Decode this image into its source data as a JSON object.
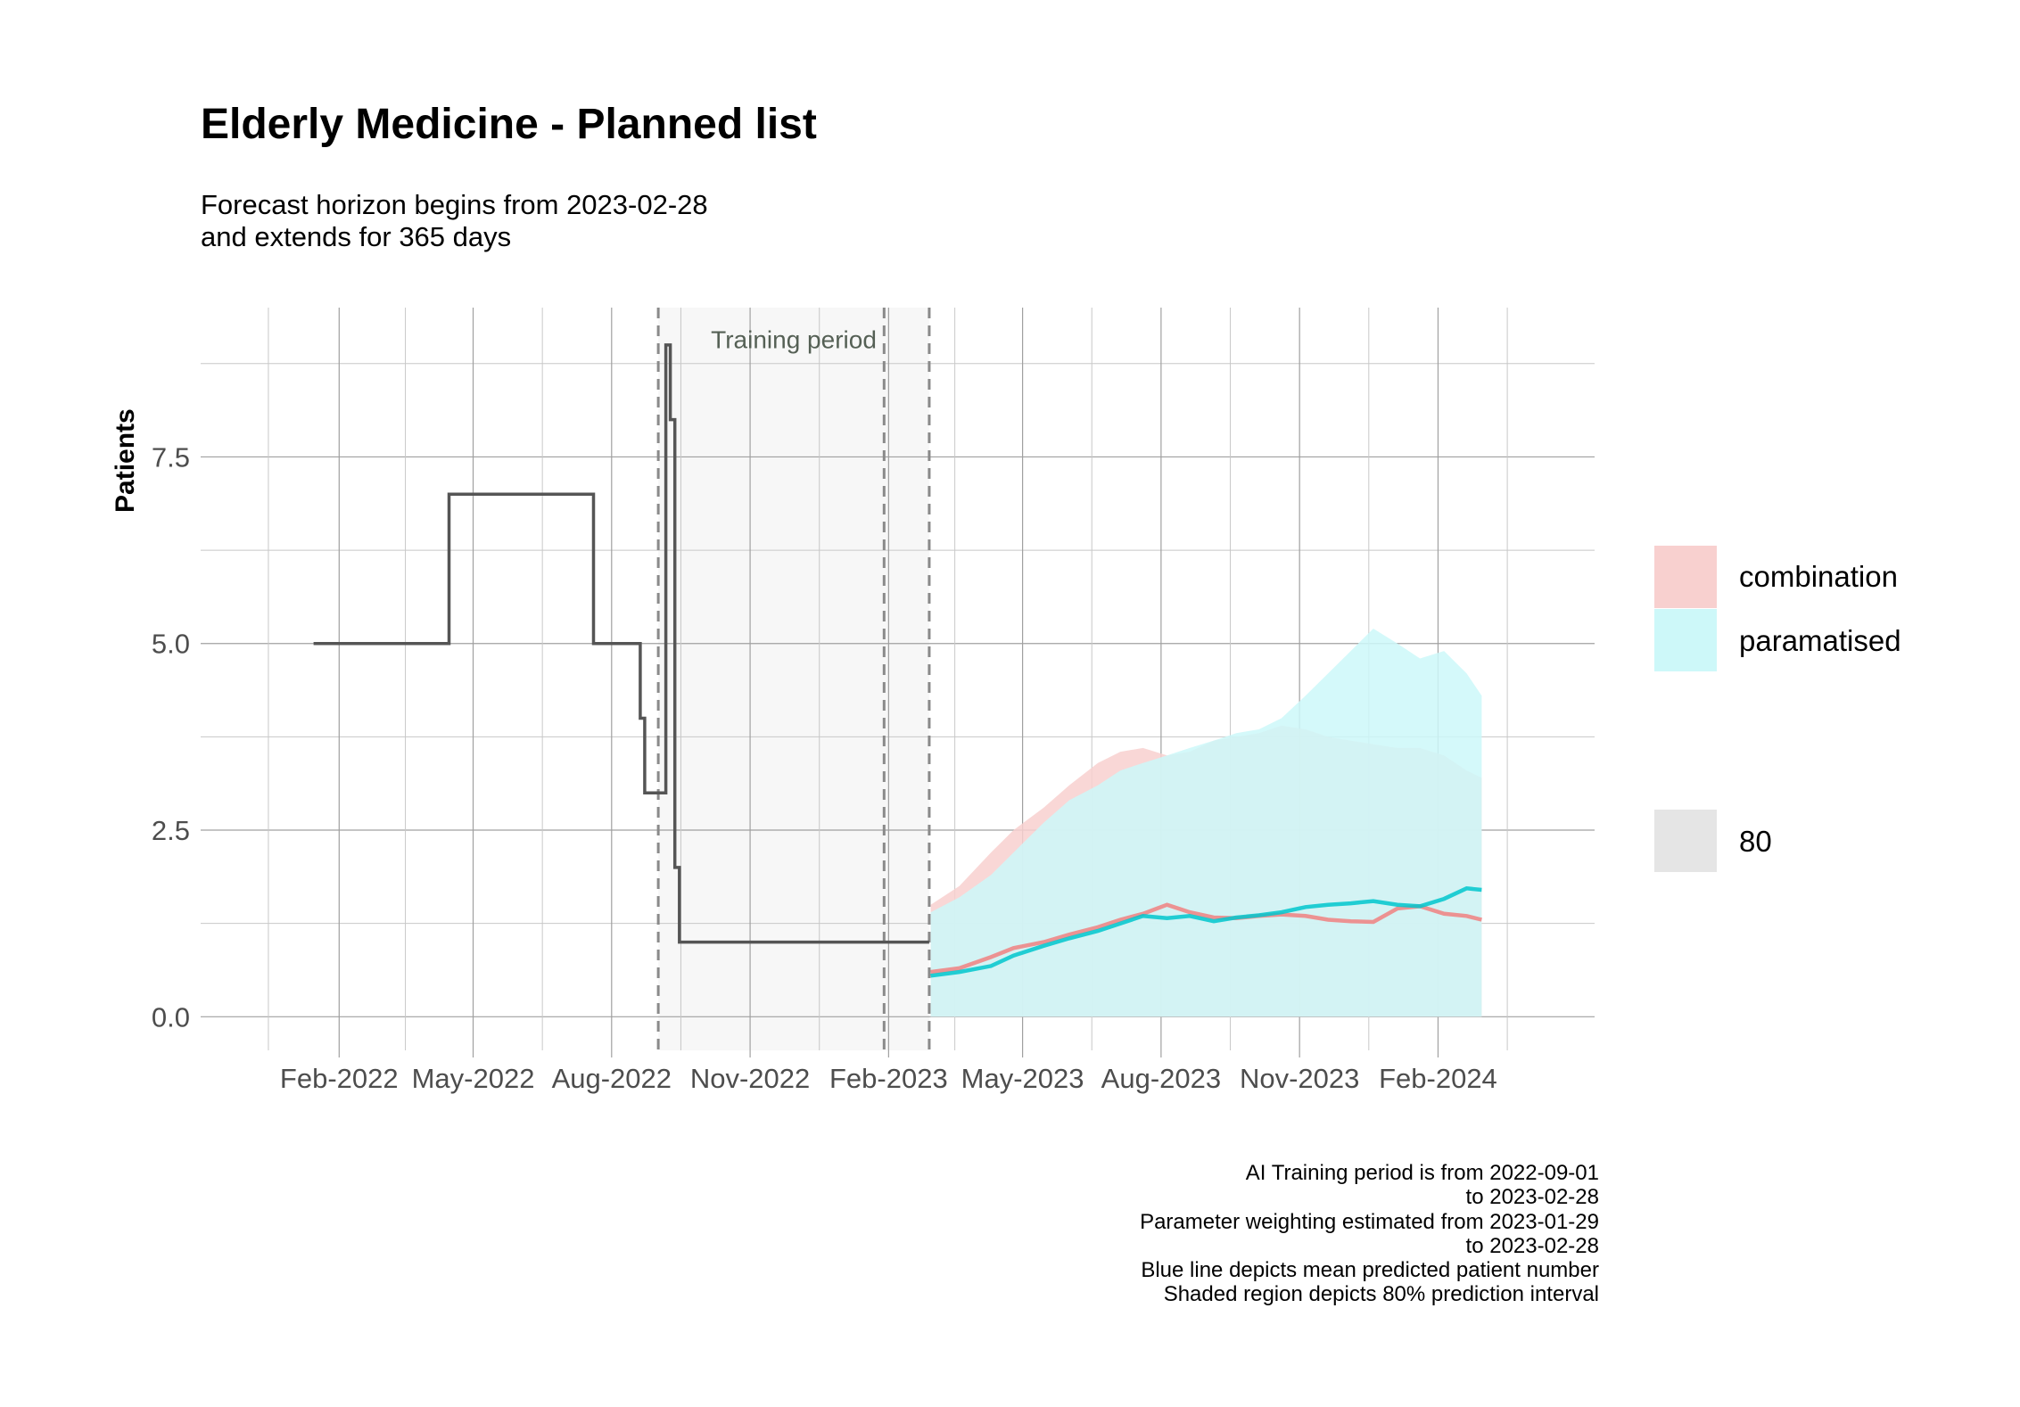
{
  "chart_data": {
    "type": "line",
    "title": "Elderly Medicine - Planned list",
    "subtitle": [
      "Forecast horizon begins from 2023-02-28",
      "and extends for 365 days"
    ],
    "ylabel": "Patients",
    "xlabel": "",
    "ylim": [
      -0.45,
      9.5
    ],
    "xlim": [
      "2021-11-01",
      "2024-05-15"
    ],
    "y_ticks": [
      0.0,
      2.5,
      5.0,
      7.5
    ],
    "y_tick_labels": [
      "0.0",
      "2.5",
      "5.0",
      "7.5"
    ],
    "x_ticks": [
      "2022-02-01",
      "2022-05-01",
      "2022-08-01",
      "2022-11-01",
      "2023-02-01",
      "2023-05-01",
      "2023-08-01",
      "2023-11-01",
      "2024-02-01"
    ],
    "x_tick_labels": [
      "Feb-2022",
      "May-2022",
      "Aug-2022",
      "Nov-2022",
      "Feb-2023",
      "May-2023",
      "Aug-2023",
      "Nov-2023",
      "Feb-2024"
    ],
    "grid": true,
    "training_period": {
      "start": "2022-09-01",
      "end": "2023-02-28",
      "label": "Training period"
    },
    "vlines": [
      "2022-09-01",
      "2023-01-29",
      "2023-02-28"
    ],
    "history": {
      "x": [
        "2022-01-15",
        "2022-04-15",
        "2022-04-15",
        "2022-07-20",
        "2022-07-20",
        "2022-08-20",
        "2022-08-20",
        "2022-08-23",
        "2022-08-23",
        "2022-09-06",
        "2022-09-06",
        "2022-09-09",
        "2022-09-09",
        "2022-09-12",
        "2022-09-12",
        "2022-09-15",
        "2022-09-15",
        "2022-09-18",
        "2022-09-18",
        "2023-02-28"
      ],
      "y": [
        5,
        5,
        7,
        7,
        5,
        5,
        4,
        4,
        3,
        3,
        9,
        9,
        8,
        8,
        2,
        2,
        1,
        1,
        1,
        1
      ],
      "color": "#555555"
    },
    "series": [
      {
        "name": "combination",
        "color": "#f08080",
        "x": [
          "2023-03-01",
          "2023-03-20",
          "2023-04-10",
          "2023-04-25",
          "2023-05-15",
          "2023-06-01",
          "2023-06-20",
          "2023-07-05",
          "2023-07-20",
          "2023-08-05",
          "2023-08-20",
          "2023-09-05",
          "2023-09-20",
          "2023-10-05",
          "2023-10-20",
          "2023-11-05",
          "2023-11-20",
          "2023-12-05",
          "2023-12-20",
          "2024-01-05",
          "2024-01-20",
          "2024-02-05",
          "2024-02-20",
          "2024-03-01"
        ],
        "mean": [
          0.6,
          0.65,
          0.8,
          0.92,
          1.0,
          1.1,
          1.2,
          1.3,
          1.38,
          1.5,
          1.4,
          1.33,
          1.32,
          1.35,
          1.37,
          1.35,
          1.3,
          1.28,
          1.27,
          1.45,
          1.48,
          1.38,
          1.35,
          1.3
        ],
        "upper": [
          1.5,
          1.75,
          2.2,
          2.5,
          2.8,
          3.1,
          3.4,
          3.55,
          3.6,
          3.5,
          3.55,
          3.7,
          3.75,
          3.8,
          3.9,
          3.85,
          3.75,
          3.7,
          3.65,
          3.6,
          3.6,
          3.5,
          3.3,
          3.2
        ],
        "lower": [
          0,
          0,
          0,
          0,
          0,
          0,
          0,
          0,
          0,
          0,
          0,
          0,
          0,
          0,
          0,
          0,
          0,
          0,
          0,
          0,
          0,
          0,
          0,
          0
        ]
      },
      {
        "name": "paramatised",
        "color": "#00c5cd",
        "x": [
          "2023-03-01",
          "2023-03-20",
          "2023-04-10",
          "2023-04-25",
          "2023-05-15",
          "2023-06-01",
          "2023-06-20",
          "2023-07-05",
          "2023-07-20",
          "2023-08-05",
          "2023-08-20",
          "2023-09-05",
          "2023-09-20",
          "2023-10-05",
          "2023-10-20",
          "2023-11-05",
          "2023-11-20",
          "2023-12-05",
          "2023-12-20",
          "2024-01-05",
          "2024-01-20",
          "2024-02-05",
          "2024-02-20",
          "2024-03-01"
        ],
        "mean": [
          0.55,
          0.6,
          0.68,
          0.82,
          0.95,
          1.05,
          1.15,
          1.25,
          1.35,
          1.32,
          1.35,
          1.28,
          1.33,
          1.36,
          1.4,
          1.47,
          1.5,
          1.52,
          1.55,
          1.5,
          1.48,
          1.58,
          1.72,
          1.7
        ],
        "upper": [
          1.4,
          1.6,
          1.9,
          2.2,
          2.6,
          2.9,
          3.1,
          3.3,
          3.4,
          3.5,
          3.6,
          3.7,
          3.8,
          3.85,
          4.0,
          4.3,
          4.6,
          4.9,
          5.2,
          5.0,
          4.8,
          4.9,
          4.6,
          4.3
        ],
        "lower": [
          0,
          0,
          0,
          0,
          0,
          0,
          0,
          0,
          0,
          0,
          0,
          0,
          0,
          0,
          0,
          0,
          0,
          0,
          0,
          0,
          0,
          0,
          0,
          0
        ]
      }
    ],
    "legend": {
      "position": "right",
      "entries": [
        {
          "label": "combination",
          "color": "#f8d0cf"
        },
        {
          "label": "paramatised",
          "color": "#cdf8f9"
        }
      ],
      "interval_label": "80",
      "interval_color": "#e5e5e5"
    },
    "caption": [
      "AI Training period is from 2022-09-01",
      "to 2023-02-28",
      "Parameter weighting estimated from 2023-01-29",
      "to 2023-02-28",
      "Blue line depicts mean predicted patient number",
      "Shaded region depicts 80% prediction interval"
    ]
  }
}
